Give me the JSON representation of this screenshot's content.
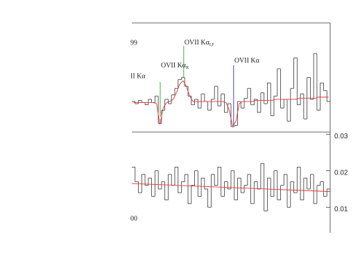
{
  "chart_data": [
    {
      "type": "step",
      "corner_label": "99",
      "cropped_label": "II  Kα",
      "xlim": [
        0,
        60
      ],
      "ylim": [
        0,
        1
      ],
      "color": "#333333",
      "model_color": "#e8322b",
      "values": [
        0.28,
        0.26,
        0.29,
        0.27,
        0.25,
        0.3,
        0.27,
        0.33,
        0.08,
        0.2,
        0.3,
        0.26,
        0.34,
        0.4,
        0.48,
        0.5,
        0.42,
        0.33,
        0.25,
        0.3,
        0.22,
        0.35,
        0.28,
        0.2,
        0.3,
        0.42,
        0.24,
        0.35,
        0.18,
        0.26,
        0.05,
        0.06,
        0.28,
        0.22,
        0.31,
        0.4,
        0.25,
        0.3,
        0.18,
        0.36,
        0.26,
        0.45,
        0.15,
        0.33,
        0.58,
        0.22,
        0.3,
        0.1,
        0.4,
        0.68,
        0.25,
        0.35,
        0.12,
        0.5,
        0.3,
        0.72,
        0.2,
        0.45,
        0.38,
        0.28
      ],
      "model_values": [
        0.27,
        0.27,
        0.27,
        0.27,
        0.27,
        0.27,
        0.27,
        0.26,
        0.07,
        0.22,
        0.27,
        0.28,
        0.3,
        0.36,
        0.44,
        0.47,
        0.42,
        0.33,
        0.28,
        0.28,
        0.28,
        0.28,
        0.28,
        0.28,
        0.28,
        0.28,
        0.28,
        0.28,
        0.27,
        0.2,
        0.05,
        0.1,
        0.26,
        0.28,
        0.28,
        0.28,
        0.28,
        0.29,
        0.29,
        0.29,
        0.29,
        0.29,
        0.29,
        0.3,
        0.3,
        0.3,
        0.3,
        0.3,
        0.3,
        0.3,
        0.31,
        0.31,
        0.31,
        0.31,
        0.31,
        0.31,
        0.32,
        0.32,
        0.32,
        0.32
      ],
      "annotations": [
        {
          "x": 8.6,
          "label": "OVII  Kα",
          "subscript": "R",
          "color": "#2ca02c"
        },
        {
          "x": 15.7,
          "label": "OVII  Kα",
          "subscript": "I,F",
          "color": "#2ca02c"
        },
        {
          "x": 30.8,
          "label": "OVII  Kα",
          "color": "#2a2ad0"
        }
      ]
    },
    {
      "type": "step",
      "corner_label": "00",
      "xlim": [
        0,
        60
      ],
      "ylim": [
        0.003,
        0.0306
      ],
      "yticks": [
        0.01,
        0.02,
        0.03
      ],
      "color": "#333333",
      "model_color": "#e8322b",
      "values": [
        0.021,
        0.017,
        0.014,
        0.019,
        0.016,
        0.018,
        0.013,
        0.02,
        0.015,
        0.017,
        0.012,
        0.019,
        0.016,
        0.021,
        0.014,
        0.017,
        0.019,
        0.011,
        0.016,
        0.02,
        0.013,
        0.018,
        0.015,
        0.01,
        0.019,
        0.016,
        0.021,
        0.013,
        0.017,
        0.015,
        0.02,
        0.012,
        0.018,
        0.014,
        0.016,
        0.019,
        0.011,
        0.017,
        0.015,
        0.022,
        0.009,
        0.018,
        0.013,
        0.02,
        0.012,
        0.016,
        0.019,
        0.01,
        0.017,
        0.014,
        0.021,
        0.012,
        0.018,
        0.015,
        0.019,
        0.011,
        0.016,
        0.017,
        0.013,
        0.015
      ],
      "model": {
        "x": [
          0,
          60
        ],
        "values": [
          0.0165,
          0.0143
        ]
      }
    }
  ]
}
